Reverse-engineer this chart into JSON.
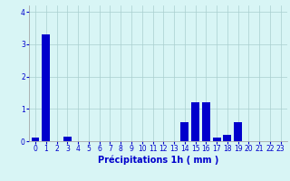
{
  "categories": [
    0,
    1,
    2,
    3,
    4,
    5,
    6,
    7,
    8,
    9,
    10,
    11,
    12,
    13,
    14,
    15,
    16,
    17,
    18,
    19,
    20,
    21,
    22,
    23
  ],
  "values": [
    0.1,
    3.3,
    0.0,
    0.15,
    0.0,
    0.0,
    0.0,
    0.0,
    0.0,
    0.0,
    0.0,
    0.0,
    0.0,
    0.0,
    0.6,
    1.2,
    1.2,
    0.1,
    0.2,
    0.6,
    0.0,
    0.0,
    0.0,
    0.0
  ],
  "bar_color": "#0000cc",
  "background_color": "#d8f5f5",
  "grid_color": "#aacfcf",
  "xlabel": "Précipitations 1h ( mm )",
  "xlabel_color": "#0000cc",
  "xlabel_fontsize": 7,
  "tick_color": "#0000cc",
  "tick_fontsize": 5.5,
  "ylim": [
    0,
    4.2
  ],
  "yticks": [
    0,
    1,
    2,
    3,
    4
  ],
  "bar_width": 0.75
}
